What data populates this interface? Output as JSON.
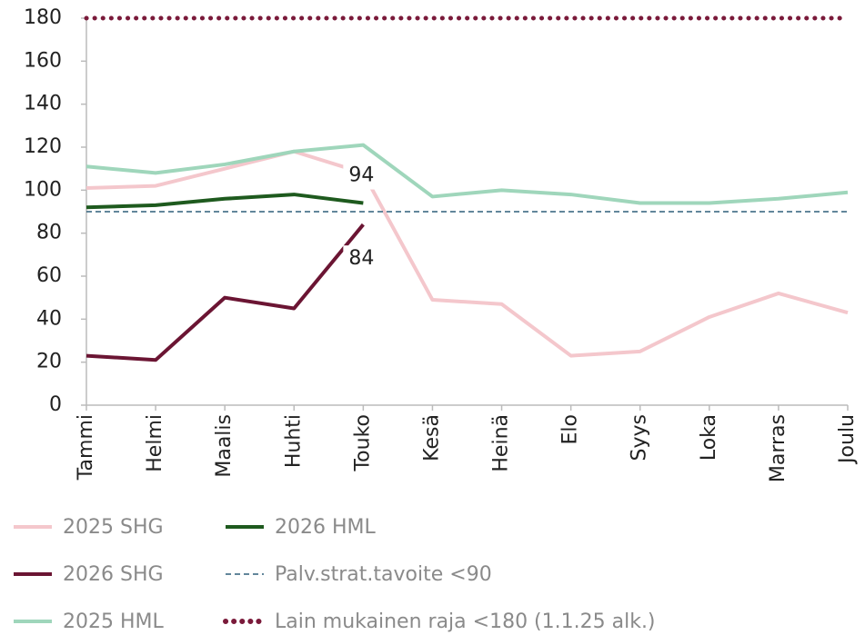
{
  "chart_data": {
    "type": "line",
    "categories": [
      "Tammi",
      "Helmi",
      "Maalis",
      "Huhti",
      "Touko",
      "Kesä",
      "Heinä",
      "Elo",
      "Syys",
      "Loka",
      "Marras",
      "Joulu"
    ],
    "series": [
      {
        "name": "2025 SHG",
        "color": "#f4c7cc",
        "style": "solid",
        "values": [
          101,
          102,
          110,
          118,
          108,
          49,
          47,
          23,
          25,
          41,
          52,
          43
        ]
      },
      {
        "name": "2026 HML",
        "color": "#1e5a1e",
        "style": "solid",
        "values": [
          92,
          93,
          96,
          98,
          94,
          null,
          null,
          null,
          null,
          null,
          null,
          null
        ],
        "labeled_points": [
          4
        ],
        "label_position": "above"
      },
      {
        "name": "2026 SHG",
        "color": "#6b1533",
        "style": "solid",
        "values": [
          23,
          21,
          50,
          45,
          84,
          null,
          null,
          null,
          null,
          null,
          null,
          null
        ],
        "labeled_points": [
          4
        ],
        "label_position": "below"
      },
      {
        "name": "Palv.strat.tavoite <90",
        "color": "#2e5f7a",
        "style": "dashed",
        "values": [
          90,
          90,
          90,
          90,
          90,
          90,
          90,
          90,
          90,
          90,
          90,
          90
        ]
      },
      {
        "name": "2025 HML",
        "color": "#9fd6bb",
        "style": "solid",
        "values": [
          111,
          108,
          112,
          118,
          121,
          97,
          100,
          98,
          94,
          94,
          96,
          99
        ]
      },
      {
        "name": "Lain mukainen raja <180 (1.1.25 alk.)",
        "color": "#7a1a3a",
        "style": "dotted",
        "values": [
          180,
          180,
          180,
          180,
          180,
          180,
          180,
          180,
          180,
          180,
          180,
          180
        ]
      }
    ],
    "ylim": [
      0,
      180
    ],
    "yticks": [
      0,
      20,
      40,
      60,
      80,
      100,
      120,
      140,
      160,
      180
    ],
    "grid": false
  }
}
